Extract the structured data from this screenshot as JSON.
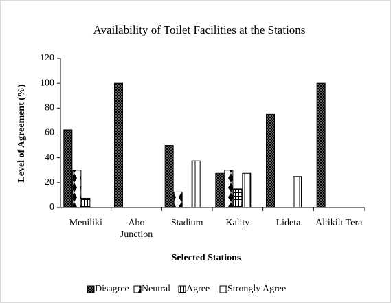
{
  "chart_data": {
    "type": "bar",
    "title": "Availability of Toilet Facilities at the Stations",
    "xlabel": "Selected Stations",
    "ylabel": "Level of Agreement (%)",
    "categories": [
      "Meniliki",
      "Abo Junction",
      "Stadium",
      "Kality",
      "Lideta",
      "Altikilt Tera"
    ],
    "series": [
      {
        "name": "Disagree",
        "color": "#000000",
        "values": [
          62.5,
          100,
          50,
          27.5,
          75,
          100
        ]
      },
      {
        "name": "Neutral",
        "color": "#000000",
        "values": [
          30,
          0,
          12.5,
          30,
          0,
          0
        ]
      },
      {
        "name": "Agree",
        "color": "#000000",
        "values": [
          7.5,
          0,
          0,
          15,
          0,
          0
        ]
      },
      {
        "name": "Strongly Agree",
        "color": "#000000",
        "values": [
          0,
          0,
          37.5,
          27.5,
          25,
          0
        ]
      }
    ],
    "ylim": [
      0,
      120
    ],
    "yticks": [
      0,
      20,
      40,
      60,
      80,
      100,
      120
    ],
    "grid": false,
    "legend": "bottom"
  }
}
